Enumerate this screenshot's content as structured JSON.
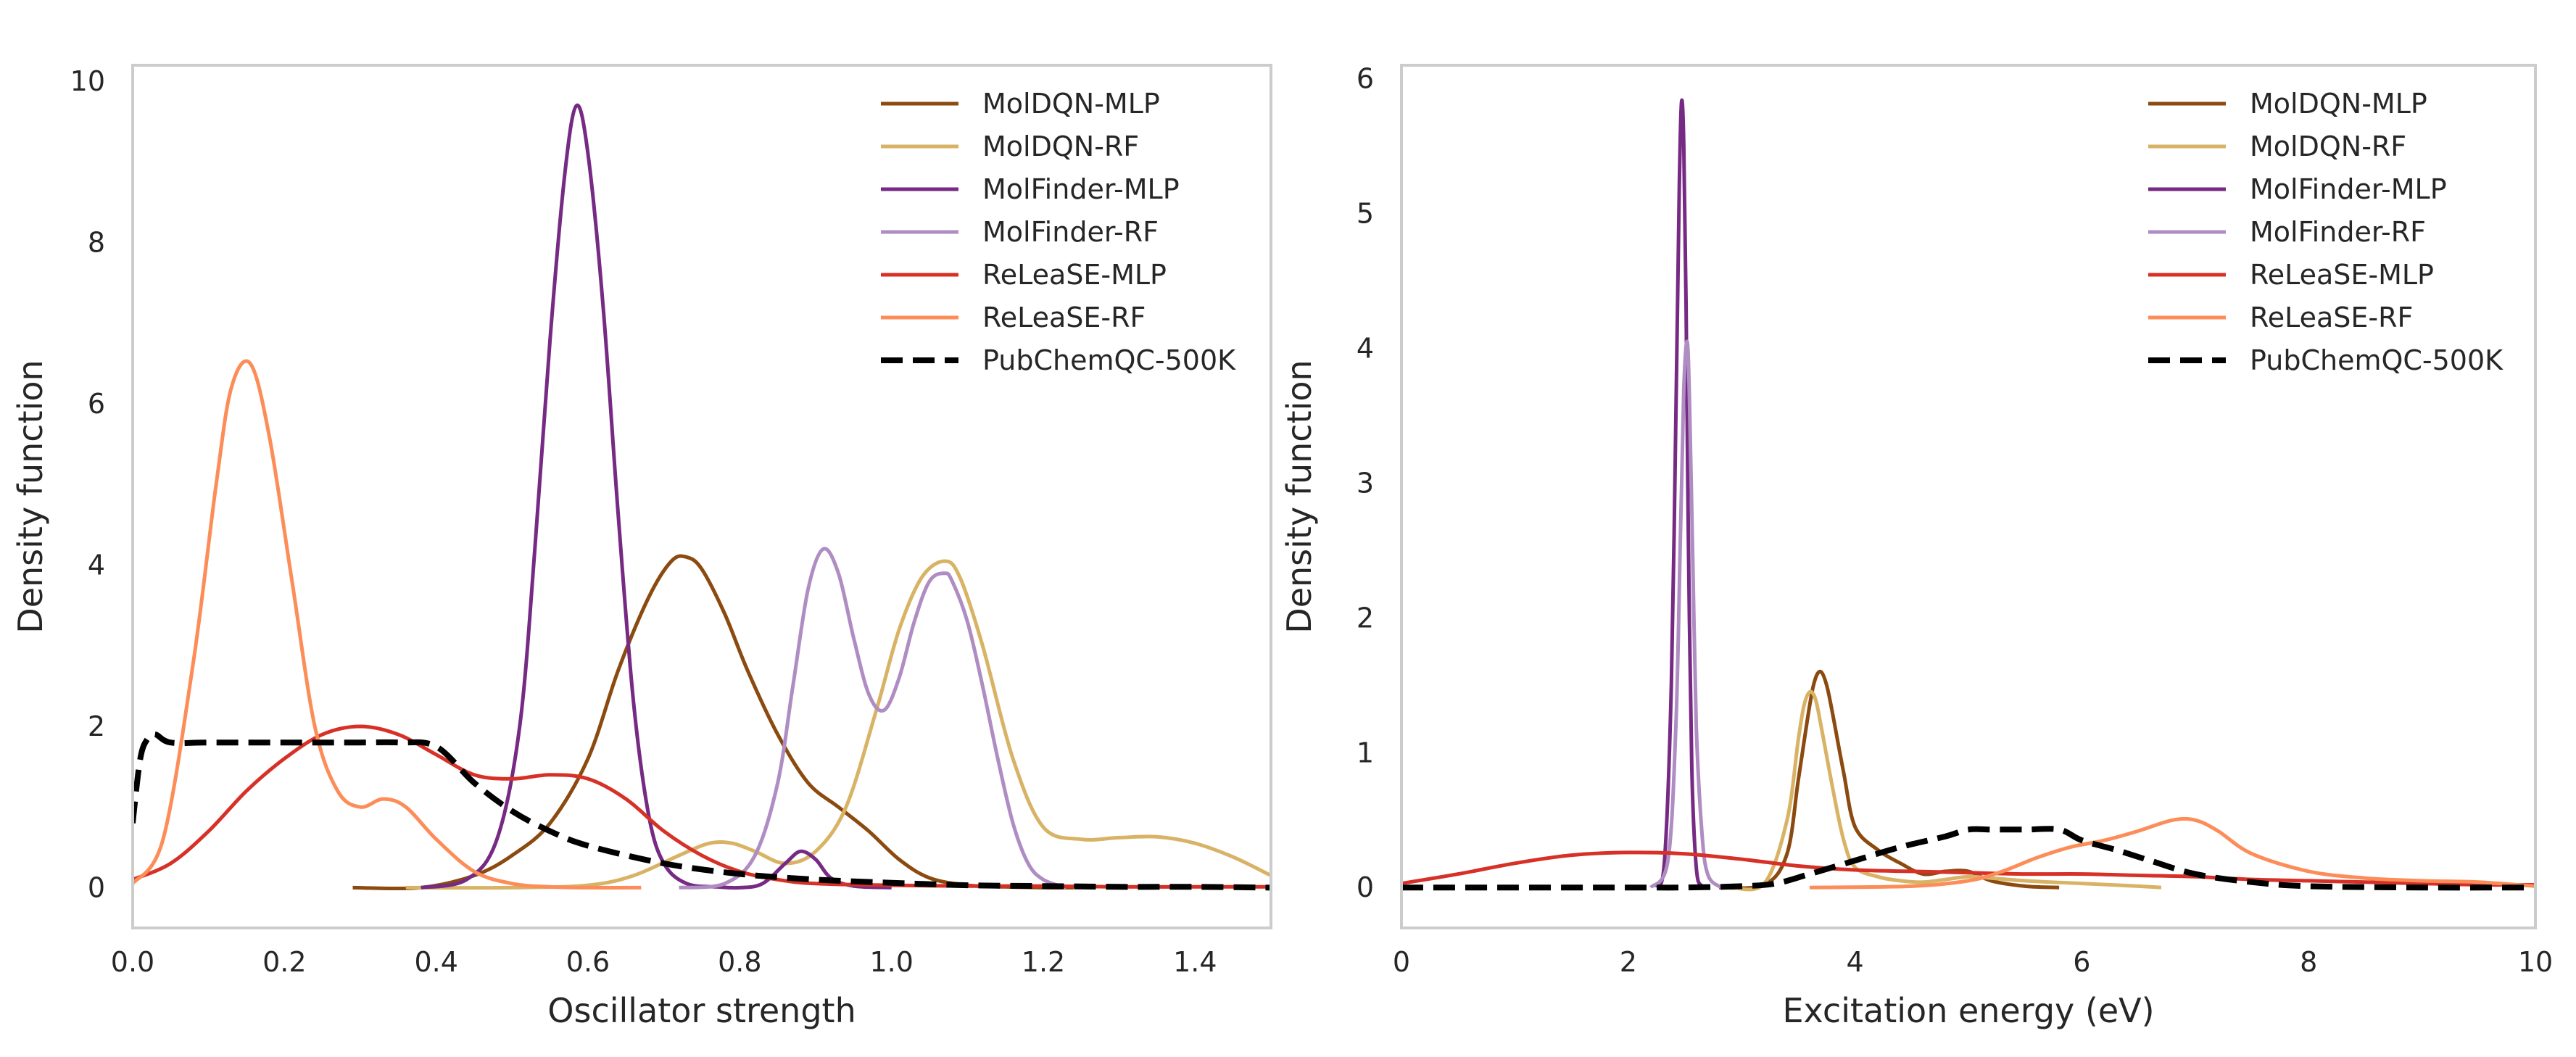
{
  "chart_data": [
    {
      "type": "line",
      "xlabel": "Oscillator strength",
      "ylabel": "Density function",
      "xlim": [
        0,
        1.5
      ],
      "ylim": [
        -0.5,
        10.2
      ],
      "xticks": [
        "0.0",
        "0.2",
        "0.4",
        "0.6",
        "0.8",
        "1.0",
        "1.2",
        "1.4"
      ],
      "yticks": [
        "0",
        "2",
        "4",
        "6",
        "8",
        "10"
      ],
      "grid": false,
      "legend": "top-right",
      "series": [
        {
          "name": "MolDQN-MLP",
          "color": "#8b4a0f",
          "dashed": false,
          "x": [
            0.29,
            0.38,
            0.45,
            0.5,
            0.55,
            0.6,
            0.64,
            0.68,
            0.71,
            0.73,
            0.75,
            0.78,
            0.81,
            0.85,
            0.89,
            0.93,
            0.97,
            1.01,
            1.05,
            1.1,
            1.15,
            1.2,
            1.24
          ],
          "y": [
            0,
            0,
            0.15,
            0.4,
            0.8,
            1.6,
            2.7,
            3.6,
            4.05,
            4.1,
            3.95,
            3.4,
            2.7,
            1.9,
            1.3,
            1.0,
            0.7,
            0.35,
            0.12,
            0.03,
            0.01,
            0,
            0
          ]
        },
        {
          "name": "MolDQN-RF",
          "color": "#d8b365",
          "dashed": false,
          "x": [
            0.36,
            0.5,
            0.6,
            0.66,
            0.72,
            0.76,
            0.79,
            0.82,
            0.86,
            0.9,
            0.94,
            0.98,
            1.01,
            1.04,
            1.07,
            1.09,
            1.12,
            1.16,
            1.2,
            1.25,
            1.3,
            1.35,
            1.4,
            1.45,
            1.5
          ],
          "y": [
            0,
            0,
            0.03,
            0.15,
            0.4,
            0.55,
            0.55,
            0.45,
            0.3,
            0.45,
            1.0,
            2.2,
            3.2,
            3.85,
            4.05,
            3.85,
            3.0,
            1.6,
            0.75,
            0.6,
            0.62,
            0.63,
            0.55,
            0.38,
            0.15
          ]
        },
        {
          "name": "MolFinder-MLP",
          "color": "#762a83",
          "dashed": false,
          "x": [
            0.38,
            0.44,
            0.48,
            0.51,
            0.53,
            0.55,
            0.57,
            0.585,
            0.6,
            0.62,
            0.64,
            0.66,
            0.68,
            0.7,
            0.73,
            0.77,
            0.8,
            0.83,
            0.86,
            0.88,
            0.9,
            0.92,
            0.95,
            1.0
          ],
          "y": [
            0,
            0.1,
            0.6,
            2.0,
            4.2,
            6.8,
            8.9,
            9.7,
            9.1,
            7.2,
            4.6,
            2.3,
            0.9,
            0.3,
            0.05,
            0.01,
            0,
            0.05,
            0.3,
            0.45,
            0.35,
            0.12,
            0.02,
            0
          ]
        },
        {
          "name": "MolFinder-RF",
          "color": "#af8dc3",
          "dashed": false,
          "x": [
            0.72,
            0.78,
            0.82,
            0.85,
            0.87,
            0.89,
            0.91,
            0.93,
            0.95,
            0.97,
            0.99,
            1.01,
            1.03,
            1.05,
            1.07,
            1.08,
            1.1,
            1.12,
            1.14,
            1.16,
            1.18,
            1.2,
            1.23
          ],
          "y": [
            0,
            0.05,
            0.4,
            1.3,
            2.5,
            3.7,
            4.2,
            3.9,
            3.1,
            2.4,
            2.2,
            2.6,
            3.3,
            3.8,
            3.9,
            3.8,
            3.3,
            2.5,
            1.6,
            0.8,
            0.3,
            0.1,
            0
          ]
        },
        {
          "name": "ReLeaSE-MLP",
          "color": "#d73027",
          "dashed": false,
          "x": [
            0.0,
            0.05,
            0.1,
            0.15,
            0.2,
            0.25,
            0.3,
            0.35,
            0.4,
            0.45,
            0.5,
            0.55,
            0.6,
            0.65,
            0.7,
            0.75,
            0.8,
            0.85,
            0.9,
            1.0,
            1.1,
            1.2,
            1.3,
            1.4,
            1.5
          ],
          "y": [
            0.1,
            0.3,
            0.7,
            1.2,
            1.6,
            1.9,
            2.0,
            1.9,
            1.65,
            1.4,
            1.35,
            1.4,
            1.35,
            1.1,
            0.7,
            0.4,
            0.2,
            0.1,
            0.05,
            0.03,
            0.02,
            0.02,
            0.01,
            0.01,
            0.01
          ]
        },
        {
          "name": "ReLeaSE-RF",
          "color": "#fc8d59",
          "dashed": false,
          "x": [
            0.0,
            0.04,
            0.08,
            0.11,
            0.13,
            0.155,
            0.18,
            0.21,
            0.24,
            0.27,
            0.3,
            0.33,
            0.36,
            0.4,
            0.45,
            0.5,
            0.55,
            0.6,
            0.67
          ],
          "y": [
            0.05,
            0.6,
            2.8,
            5.0,
            6.2,
            6.5,
            5.6,
            3.8,
            2.0,
            1.2,
            1.0,
            1.1,
            1.0,
            0.6,
            0.2,
            0.05,
            0.01,
            0,
            0
          ]
        },
        {
          "name": "PubChemQC-500K",
          "color": "#000000",
          "dashed": true,
          "x": [
            0.0,
            0.01,
            0.02,
            0.03,
            0.05,
            0.1,
            0.2,
            0.3,
            0.35,
            0.4,
            0.45,
            0.5,
            0.55,
            0.6,
            0.7,
            0.8,
            0.9,
            1.0,
            1.1,
            1.2,
            1.3,
            1.4,
            1.5
          ],
          "y": [
            0.8,
            1.6,
            1.85,
            1.9,
            1.8,
            1.8,
            1.8,
            1.8,
            1.8,
            1.75,
            1.3,
            0.95,
            0.7,
            0.52,
            0.3,
            0.17,
            0.1,
            0.06,
            0.03,
            0.02,
            0.01,
            0.01,
            0
          ]
        }
      ]
    },
    {
      "type": "line",
      "xlabel": "Excitation energy (eV)",
      "ylabel": "Density function",
      "xlim": [
        0,
        10
      ],
      "ylim": [
        -0.3,
        6.1
      ],
      "xticks": [
        "0",
        "2",
        "4",
        "6",
        "8",
        "10"
      ],
      "yticks": [
        "0",
        "1",
        "2",
        "3",
        "4",
        "5",
        "6"
      ],
      "grid": false,
      "legend": "top-right",
      "series": [
        {
          "name": "MolDQN-MLP",
          "color": "#8b4a0f",
          "dashed": false,
          "x": [
            2.8,
            3.2,
            3.4,
            3.5,
            3.6,
            3.65,
            3.7,
            3.75,
            3.8,
            3.9,
            4.0,
            4.2,
            4.4,
            4.6,
            4.8,
            5.0,
            5.2,
            5.5,
            5.8
          ],
          "y": [
            0,
            0.02,
            0.25,
            0.8,
            1.35,
            1.55,
            1.6,
            1.5,
            1.3,
            0.85,
            0.45,
            0.28,
            0.18,
            0.1,
            0.12,
            0.12,
            0.05,
            0.01,
            0
          ]
        },
        {
          "name": "MolDQN-RF",
          "color": "#d8b365",
          "dashed": false,
          "x": [
            2.9,
            3.2,
            3.4,
            3.5,
            3.55,
            3.6,
            3.65,
            3.7,
            3.8,
            3.9,
            4.0,
            4.2,
            4.4,
            4.6,
            4.8,
            5.0,
            5.2,
            5.5,
            6.0,
            6.5,
            6.7
          ],
          "y": [
            0,
            0.03,
            0.5,
            1.1,
            1.35,
            1.45,
            1.4,
            1.2,
            0.75,
            0.35,
            0.15,
            0.08,
            0.05,
            0.04,
            0.06,
            0.08,
            0.07,
            0.05,
            0.03,
            0.01,
            0
          ]
        },
        {
          "name": "MolFinder-MLP",
          "color": "#762a83",
          "dashed": false,
          "x": [
            2.25,
            2.32,
            2.38,
            2.42,
            2.45,
            2.47,
            2.49,
            2.51,
            2.53,
            2.56,
            2.6,
            2.65,
            2.72
          ],
          "y": [
            0,
            0.2,
            1.5,
            3.5,
            5.2,
            5.83,
            5.5,
            4.3,
            2.6,
            0.9,
            0.15,
            0.01,
            0
          ]
        },
        {
          "name": "MolFinder-RF",
          "color": "#af8dc3",
          "dashed": false,
          "x": [
            2.2,
            2.35,
            2.42,
            2.46,
            2.49,
            2.52,
            2.54,
            2.57,
            2.6,
            2.65,
            2.7,
            2.8,
            2.9
          ],
          "y": [
            0,
            0.2,
            1.2,
            2.6,
            3.7,
            4.05,
            3.6,
            2.4,
            1.2,
            0.4,
            0.1,
            0.01,
            0
          ]
        },
        {
          "name": "ReLeaSE-MLP",
          "color": "#d73027",
          "dashed": false,
          "x": [
            0,
            0.5,
            1.0,
            1.5,
            2.0,
            2.5,
            3.0,
            3.5,
            4.0,
            4.5,
            5.0,
            5.5,
            6.0,
            6.5,
            7.0,
            7.5,
            8.0,
            8.5,
            9.0,
            9.5,
            10.0
          ],
          "y": [
            0.03,
            0.1,
            0.18,
            0.24,
            0.26,
            0.25,
            0.21,
            0.16,
            0.13,
            0.12,
            0.11,
            0.1,
            0.1,
            0.09,
            0.08,
            0.06,
            0.05,
            0.04,
            0.03,
            0.02,
            0.02
          ]
        },
        {
          "name": "ReLeaSE-RF",
          "color": "#fc8d59",
          "dashed": false,
          "x": [
            3.6,
            4.5,
            5.0,
            5.3,
            5.6,
            5.9,
            6.2,
            6.5,
            6.8,
            7.0,
            7.2,
            7.5,
            8.0,
            8.5,
            9.0,
            9.5,
            10.0
          ],
          "y": [
            0,
            0.01,
            0.05,
            0.12,
            0.22,
            0.3,
            0.35,
            0.42,
            0.5,
            0.5,
            0.42,
            0.25,
            0.12,
            0.07,
            0.05,
            0.04,
            0.01
          ]
        },
        {
          "name": "PubChemQC-500K",
          "color": "#000000",
          "dashed": true,
          "x": [
            0,
            1.0,
            2.0,
            2.5,
            3.0,
            3.3,
            3.6,
            4.0,
            4.4,
            4.8,
            5.0,
            5.2,
            5.5,
            5.8,
            6.0,
            6.3,
            6.6,
            7.0,
            7.5,
            8.0,
            9.0,
            10.0
          ],
          "y": [
            0,
            0,
            0,
            0,
            0.01,
            0.03,
            0.1,
            0.2,
            0.3,
            0.38,
            0.43,
            0.43,
            0.43,
            0.43,
            0.35,
            0.28,
            0.2,
            0.1,
            0.04,
            0.01,
            0,
            0
          ]
        }
      ]
    }
  ]
}
